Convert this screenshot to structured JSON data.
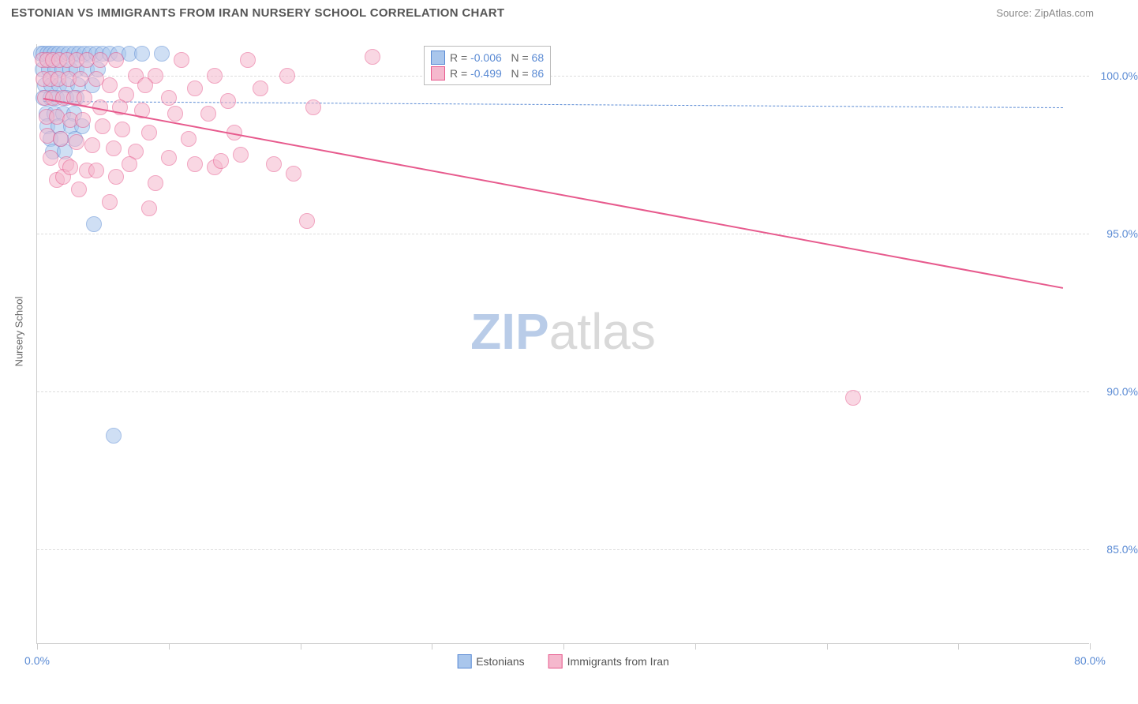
{
  "title": "ESTONIAN VS IMMIGRANTS FROM IRAN NURSERY SCHOOL CORRELATION CHART",
  "source": "Source: ZipAtlas.com",
  "watermark": {
    "part1": "ZIP",
    "part2": "atlas",
    "color1": "#b9cce8",
    "color2": "#d9d9d9"
  },
  "yaxis_title": "Nursery School",
  "chart": {
    "type": "scatter",
    "background_color": "#ffffff",
    "grid_color": "#dddddd",
    "border_color": "#cccccc",
    "xlim": [
      0,
      80
    ],
    "ylim": [
      82,
      101
    ],
    "xticks": [
      0,
      10,
      20,
      30,
      40,
      50,
      60,
      70,
      80
    ],
    "xtick_labels": {
      "0": "0.0%",
      "80": "80.0%"
    },
    "yticks": [
      85,
      90,
      95,
      100
    ],
    "ytick_labels": {
      "85": "85.0%",
      "90": "90.0%",
      "95": "95.0%",
      "100": "100.0%"
    },
    "tick_label_color": "#5b8bd4",
    "marker_radius": 10,
    "marker_opacity": 0.55,
    "series": [
      {
        "name": "Estonians",
        "fill": "#a9c6ec",
        "stroke": "#5b8bd4",
        "R": "-0.006",
        "N": "68",
        "trend": {
          "x1": 0.5,
          "y1": 99.2,
          "x2": 78,
          "y2": 99.0,
          "dash": "4 4",
          "width": 1.5
        },
        "points": [
          [
            0.3,
            100.7
          ],
          [
            0.5,
            100.7
          ],
          [
            0.8,
            100.7
          ],
          [
            1.0,
            100.7
          ],
          [
            1.3,
            100.7
          ],
          [
            1.6,
            100.7
          ],
          [
            2.0,
            100.7
          ],
          [
            2.4,
            100.7
          ],
          [
            2.8,
            100.7
          ],
          [
            3.2,
            100.7
          ],
          [
            3.6,
            100.7
          ],
          [
            4.0,
            100.7
          ],
          [
            4.5,
            100.7
          ],
          [
            5.0,
            100.7
          ],
          [
            5.5,
            100.7
          ],
          [
            6.2,
            100.7
          ],
          [
            7.0,
            100.7
          ],
          [
            8.0,
            100.7
          ],
          [
            9.5,
            100.7
          ],
          [
            0.4,
            100.2
          ],
          [
            0.9,
            100.2
          ],
          [
            1.4,
            100.2
          ],
          [
            1.9,
            100.2
          ],
          [
            2.5,
            100.2
          ],
          [
            3.0,
            100.2
          ],
          [
            3.8,
            100.2
          ],
          [
            4.6,
            100.2
          ],
          [
            0.6,
            99.7
          ],
          [
            1.1,
            99.7
          ],
          [
            1.7,
            99.7
          ],
          [
            2.3,
            99.7
          ],
          [
            3.1,
            99.7
          ],
          [
            4.2,
            99.7
          ],
          [
            0.5,
            99.3
          ],
          [
            1.0,
            99.3
          ],
          [
            1.5,
            99.3
          ],
          [
            2.2,
            99.3
          ],
          [
            3.0,
            99.3
          ],
          [
            0.7,
            98.8
          ],
          [
            1.3,
            98.8
          ],
          [
            2.0,
            98.8
          ],
          [
            2.8,
            98.8
          ],
          [
            0.8,
            98.4
          ],
          [
            1.6,
            98.4
          ],
          [
            2.6,
            98.4
          ],
          [
            3.4,
            98.4
          ],
          [
            1.0,
            98.0
          ],
          [
            1.8,
            98.0
          ],
          [
            2.9,
            98.0
          ],
          [
            1.2,
            97.6
          ],
          [
            2.1,
            97.6
          ],
          [
            4.3,
            95.3
          ],
          [
            5.8,
            88.6
          ]
        ]
      },
      {
        "name": "Immigrants from Iran",
        "fill": "#f5b8cd",
        "stroke": "#e75a8d",
        "R": "-0.499",
        "N": "86",
        "trend": {
          "x1": 0.5,
          "y1": 99.3,
          "x2": 78,
          "y2": 93.3,
          "dash": "none",
          "width": 2.5
        },
        "points": [
          [
            0.4,
            100.5
          ],
          [
            0.8,
            100.5
          ],
          [
            1.2,
            100.5
          ],
          [
            1.7,
            100.5
          ],
          [
            2.3,
            100.5
          ],
          [
            3.0,
            100.5
          ],
          [
            3.8,
            100.5
          ],
          [
            4.8,
            100.5
          ],
          [
            6.0,
            100.5
          ],
          [
            7.5,
            100.0
          ],
          [
            9.0,
            100.0
          ],
          [
            11.0,
            100.5
          ],
          [
            13.5,
            100.0
          ],
          [
            16.0,
            100.5
          ],
          [
            19.0,
            100.0
          ],
          [
            25.5,
            100.6
          ],
          [
            0.5,
            99.9
          ],
          [
            1.0,
            99.9
          ],
          [
            1.6,
            99.9
          ],
          [
            2.4,
            99.9
          ],
          [
            3.3,
            99.9
          ],
          [
            4.5,
            99.9
          ],
          [
            5.5,
            99.7
          ],
          [
            6.8,
            99.4
          ],
          [
            8.2,
            99.7
          ],
          [
            10.0,
            99.3
          ],
          [
            12.0,
            99.6
          ],
          [
            14.5,
            99.2
          ],
          [
            17.0,
            99.6
          ],
          [
            0.6,
            99.3
          ],
          [
            1.2,
            99.3
          ],
          [
            2.0,
            99.3
          ],
          [
            2.8,
            99.3
          ],
          [
            3.6,
            99.3
          ],
          [
            4.8,
            99.0
          ],
          [
            6.3,
            99.0
          ],
          [
            8.0,
            98.9
          ],
          [
            10.5,
            98.8
          ],
          [
            13.0,
            98.8
          ],
          [
            0.7,
            98.7
          ],
          [
            1.5,
            98.7
          ],
          [
            2.5,
            98.6
          ],
          [
            3.5,
            98.6
          ],
          [
            5.0,
            98.4
          ],
          [
            6.5,
            98.3
          ],
          [
            8.5,
            98.2
          ],
          [
            11.5,
            98.0
          ],
          [
            15.0,
            98.2
          ],
          [
            21.0,
            99.0
          ],
          [
            0.8,
            98.1
          ],
          [
            1.8,
            98.0
          ],
          [
            3.0,
            97.9
          ],
          [
            4.2,
            97.8
          ],
          [
            5.8,
            97.7
          ],
          [
            7.5,
            97.6
          ],
          [
            10.0,
            97.4
          ],
          [
            13.5,
            97.1
          ],
          [
            15.5,
            97.5
          ],
          [
            1.0,
            97.4
          ],
          [
            2.2,
            97.2
          ],
          [
            3.8,
            97.0
          ],
          [
            6.0,
            96.8
          ],
          [
            9.0,
            96.6
          ],
          [
            1.5,
            96.7
          ],
          [
            3.2,
            96.4
          ],
          [
            5.5,
            96.0
          ],
          [
            8.5,
            95.8
          ],
          [
            2.0,
            96.8
          ],
          [
            4.5,
            97.0
          ],
          [
            7.0,
            97.2
          ],
          [
            2.5,
            97.1
          ],
          [
            12.0,
            97.2
          ],
          [
            14.0,
            97.3
          ],
          [
            18.0,
            97.2
          ],
          [
            19.5,
            96.9
          ],
          [
            20.5,
            95.4
          ],
          [
            62.0,
            89.8
          ]
        ]
      }
    ]
  },
  "legend_top": {
    "R_label": "R =",
    "N_label": "N =",
    "text_color": "#666666",
    "value_color": "#5b8bd4"
  },
  "legend_bottom_labels": [
    "Estonians",
    "Immigrants from Iran"
  ]
}
